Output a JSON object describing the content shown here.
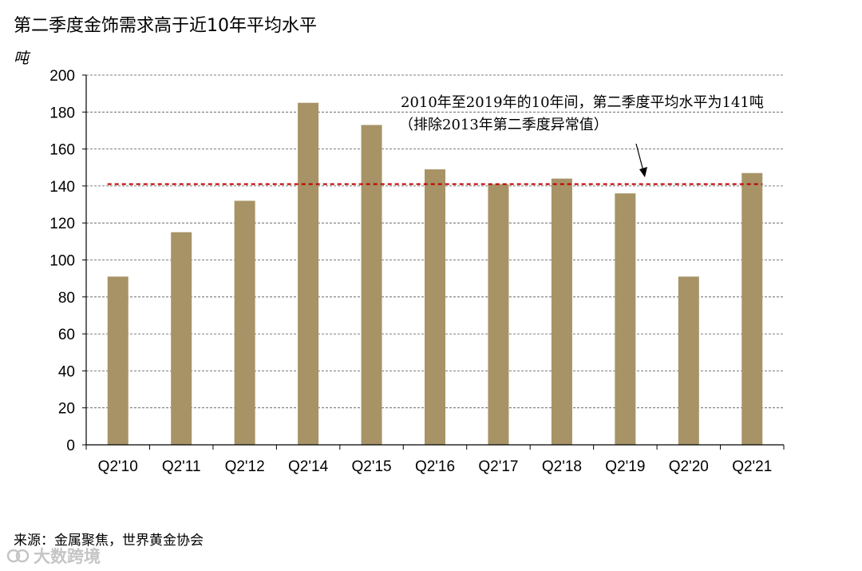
{
  "title": "第二季度金饰需求高于近10年平均水平",
  "y_unit_label": "吨",
  "source": "来源：金属聚焦，世界黄金协会",
  "watermark": "大数跨境",
  "colors": {
    "bar": "#A79366",
    "reference_line": "#C00000",
    "grid": "#555555",
    "axis": "#000000"
  },
  "chart_data": {
    "type": "bar",
    "categories": [
      "Q2'10",
      "Q2'11",
      "Q2'12",
      "Q2'14",
      "Q2'15",
      "Q2'16",
      "Q2'17",
      "Q2'18",
      "Q2'19",
      "Q2'20",
      "Q2'21"
    ],
    "values": [
      91,
      115,
      132,
      185,
      173,
      149,
      141,
      144,
      136,
      91,
      147
    ],
    "ylabel": "吨",
    "ylim": [
      0,
      200
    ],
    "yticks": [
      0,
      20,
      40,
      60,
      80,
      100,
      120,
      140,
      160,
      180,
      200
    ],
    "grid": true,
    "reference_line": {
      "value": 141,
      "style": "dashed"
    },
    "annotation": {
      "line1": "2010年至2019年的10年间，第二季度平均水平为141吨",
      "line2": "（排除2013年第二季度异常值）"
    }
  }
}
